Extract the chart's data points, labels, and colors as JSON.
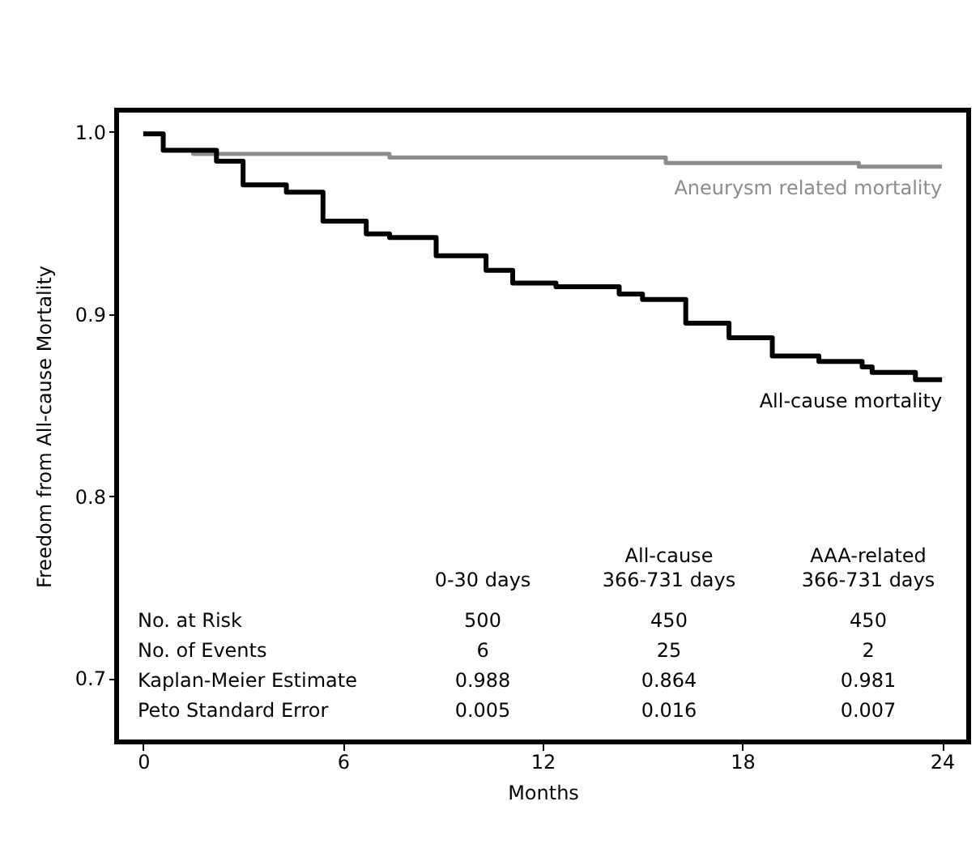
{
  "chart_data": {
    "type": "step",
    "xlabel": "Months",
    "ylabel": "Freedom from All-cause Mortality",
    "xlim": [
      -0.8,
      24.8
    ],
    "ylim": [
      0.665,
      1.012
    ],
    "xticks": [
      0,
      6,
      12,
      18,
      24
    ],
    "yticks": [
      0.7,
      0.8,
      0.9,
      {
        "value": 1,
        "label": "1.0"
      }
    ],
    "grid": false,
    "series": [
      {
        "name": "Aneurysm related mortality",
        "color": "#8c8c8c",
        "x": [
          0,
          0.6,
          1.5,
          7.4,
          15.7,
          21.5,
          24
        ],
        "values": [
          0.999,
          0.99,
          0.988,
          0.986,
          0.983,
          0.981,
          0.981
        ]
      },
      {
        "name": "All-cause mortality",
        "color": "#000000",
        "x": [
          0,
          0.6,
          2.2,
          3.0,
          4.3,
          5.4,
          6.7,
          7.4,
          8.8,
          9.8,
          10.3,
          11.1,
          12.4,
          14.3,
          15.0,
          16.3,
          17.6,
          18.9,
          20.3,
          21.6,
          21.9,
          23.2,
          24
        ],
        "values": [
          0.999,
          0.99,
          0.984,
          0.971,
          0.967,
          0.951,
          0.944,
          0.942,
          0.932,
          0.932,
          0.924,
          0.917,
          0.915,
          0.911,
          0.908,
          0.895,
          0.887,
          0.877,
          0.874,
          0.871,
          0.868,
          0.864,
          0.864
        ]
      }
    ],
    "annotations": [
      "0-30 days",
      "All-cause\n366-731 days",
      "AAA-related\n366-731 days",
      "No. at Risk",
      "500",
      "450",
      "450",
      "No. of Events",
      "6",
      "25",
      "2",
      "Kaplan-Meier Estimate",
      "0.988",
      "0.864",
      "0.981",
      "Peto Standard Error",
      "0.005",
      "0.016",
      "0.007"
    ]
  }
}
